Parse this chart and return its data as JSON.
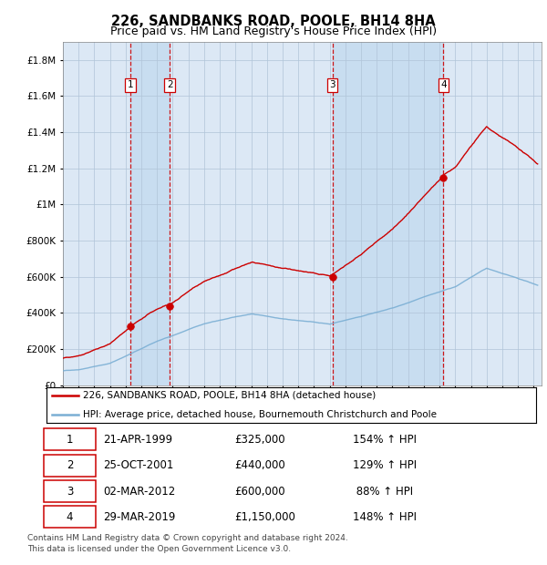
{
  "title": "226, SANDBANKS ROAD, POOLE, BH14 8HA",
  "subtitle": "Price paid vs. HM Land Registry's House Price Index (HPI)",
  "title_fontsize": 10.5,
  "subtitle_fontsize": 9,
  "background_color": "#ffffff",
  "plot_bg_color": "#dce8f5",
  "grid_color": "#b0c4d8",
  "sale_line_color": "#cc0000",
  "hpi_line_color": "#7bafd4",
  "purchase_marker_color": "#cc0000",
  "dashed_line_color": "#cc0000",
  "shade_color": "#c8ddf0",
  "ylim_max": 1900000,
  "xlim_start": 1995.0,
  "xlim_end": 2025.5,
  "purchases": [
    {
      "num": 1,
      "date_label": "21-APR-1999",
      "year": 1999.3,
      "price": 325000,
      "pct": "154%",
      "dir": "↑"
    },
    {
      "num": 2,
      "date_label": "25-OCT-2001",
      "year": 2001.82,
      "price": 440000,
      "pct": "129%",
      "dir": "↑"
    },
    {
      "num": 3,
      "date_label": "02-MAR-2012",
      "year": 2012.17,
      "price": 600000,
      "pct": "88%",
      "dir": "↑"
    },
    {
      "num": 4,
      "date_label": "29-MAR-2019",
      "year": 2019.25,
      "price": 1150000,
      "pct": "148%",
      "dir": "↑"
    }
  ],
  "legend_line1": "226, SANDBANKS ROAD, POOLE, BH14 8HA (detached house)",
  "legend_line2": "HPI: Average price, detached house, Bournemouth Christchurch and Poole",
  "footnote1": "Contains HM Land Registry data © Crown copyright and database right 2024.",
  "footnote2": "This data is licensed under the Open Government Licence v3.0.",
  "table_rows": [
    [
      "1",
      "21-APR-1999",
      "£325,000",
      "154% ↑ HPI"
    ],
    [
      "2",
      "25-OCT-2001",
      "£440,000",
      "129% ↑ HPI"
    ],
    [
      "3",
      "02-MAR-2012",
      "£600,000",
      " 88% ↑ HPI"
    ],
    [
      "4",
      "29-MAR-2019",
      "£1,150,000",
      "148% ↑ HPI"
    ]
  ]
}
